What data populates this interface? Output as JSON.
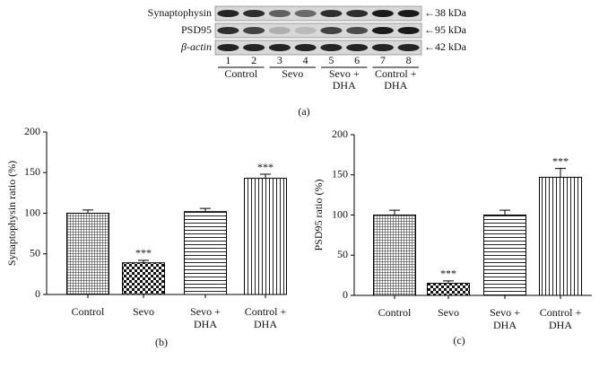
{
  "blot": {
    "rows": [
      {
        "label": "Synaptophysin",
        "size": "←38 kDa"
      },
      {
        "label": "PSD95",
        "size": "←95 kDa"
      },
      {
        "label": "β-actin",
        "size": "←42 kDa"
      }
    ],
    "lanes": [
      "1",
      "2",
      "3",
      "4",
      "5",
      "6",
      "7",
      "8"
    ],
    "groups": [
      [
        "Control"
      ],
      [
        "Sevo"
      ],
      [
        "Sevo +",
        "DHA"
      ],
      [
        "Control +",
        "DHA"
      ]
    ],
    "caption": "(a)"
  },
  "chart_data": [
    {
      "type": "bar",
      "ylabel": "Synaptophysin ratio (%)",
      "categories": [
        [
          "Control"
        ],
        [
          "Sevo"
        ],
        [
          "Sevo +",
          "DHA"
        ],
        [
          "Control +",
          "DHA"
        ]
      ],
      "values": [
        100,
        39,
        102,
        143
      ],
      "errors": [
        4,
        3,
        4,
        5
      ],
      "annotations": [
        null,
        "***",
        null,
        "***"
      ],
      "patterns": [
        "crosshatch",
        "checker",
        "horizontal",
        "vertical"
      ],
      "ylim": [
        0,
        200
      ],
      "yticks": [
        0,
        50,
        100,
        150,
        200
      ],
      "caption": "(b)"
    },
    {
      "type": "bar",
      "ylabel": "PSD95 ratio (%)",
      "categories": [
        [
          "Control"
        ],
        [
          "Sevo"
        ],
        [
          "Sevo +",
          "DHA"
        ],
        [
          "Control +",
          "DHA"
        ]
      ],
      "values": [
        100,
        15,
        100,
        147
      ],
      "errors": [
        6,
        3,
        6,
        11
      ],
      "annotations": [
        null,
        "***",
        null,
        "***"
      ],
      "patterns": [
        "crosshatch",
        "checker",
        "horizontal",
        "vertical"
      ],
      "ylim": [
        0,
        200
      ],
      "yticks": [
        0,
        50,
        100,
        150,
        200
      ],
      "caption": "(c)"
    }
  ]
}
